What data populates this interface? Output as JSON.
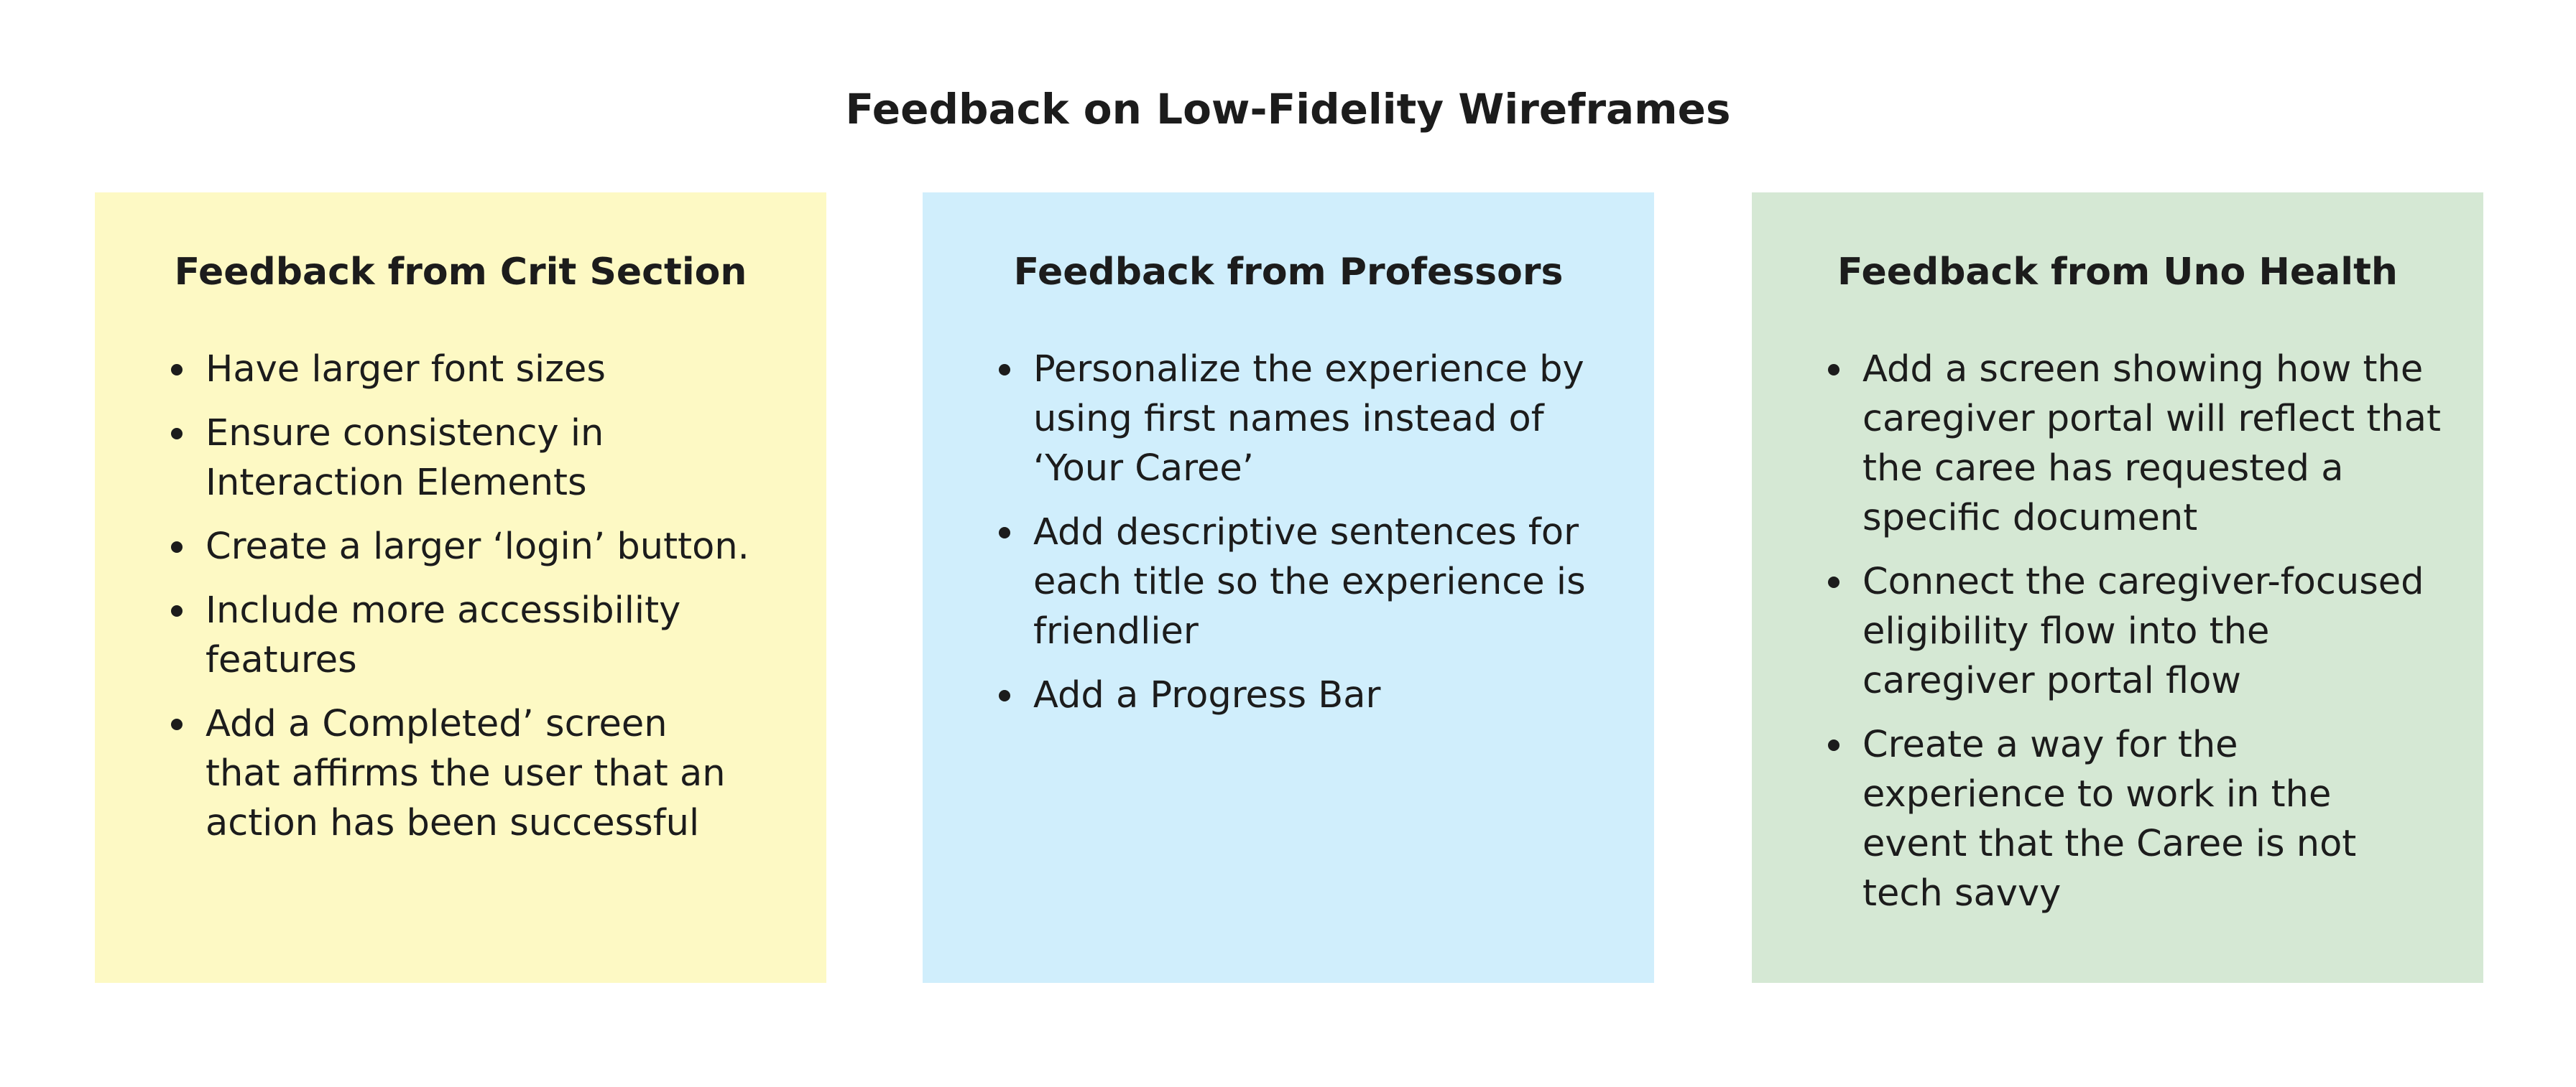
{
  "title": "Feedback on Low-Fidelity Wireframes",
  "colors": {
    "card_yellow": "#fdf9c4",
    "card_blue": "#d0eefc",
    "card_green": "#d5e8d4"
  },
  "cards": [
    {
      "title": "Feedback from Crit Section",
      "items": [
        "Have larger font sizes",
        "Ensure consistency in Interaction Elements",
        "Create a larger ‘login’ button.",
        "Include more accessibility features",
        "Add a Completed’ screen that affirms the user that an action has been successful"
      ]
    },
    {
      "title": "Feedback from Professors",
      "items": [
        "Personalize the experience by using first names instead of ‘Your Caree’",
        "Add descriptive sentences for each title so the experience is friendlier",
        "Add a Progress Bar"
      ]
    },
    {
      "title": "Feedback from Uno Health",
      "items": [
        "Add a screen showing how the caregiver portal will reflect that the caree has requested a specific document",
        "Connect the caregiver-focused eligibility flow into the caregiver portal flow",
        "Create a way for the experience to work in the event that the Caree is not tech savvy"
      ]
    }
  ]
}
